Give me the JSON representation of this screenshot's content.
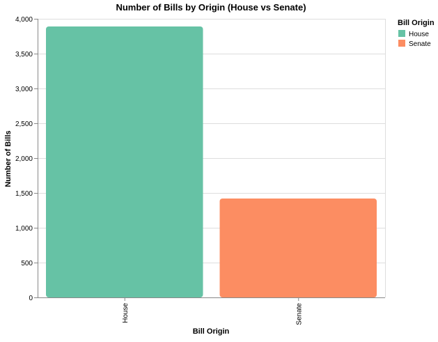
{
  "chart_data": {
    "type": "bar",
    "title": "Number of Bills by Origin (House vs Senate)",
    "xlabel": "Bill Origin",
    "ylabel": "Number of Bills",
    "categories": [
      "House",
      "Senate"
    ],
    "values": [
      3890,
      1420
    ],
    "colors": [
      "#66c2a5",
      "#fc8d62"
    ],
    "ylim": [
      0,
      4000
    ],
    "yticks": [
      0,
      500,
      1000,
      1500,
      2000,
      2500,
      3000,
      3500,
      4000
    ],
    "ytick_labels": [
      "0",
      "500",
      "1,000",
      "1,500",
      "2,000",
      "2,500",
      "3,000",
      "3,500",
      "4,000"
    ],
    "grid": true,
    "legend": {
      "title": "Bill Origin",
      "placement": "top-right",
      "entries": [
        "House",
        "Senate"
      ]
    }
  }
}
